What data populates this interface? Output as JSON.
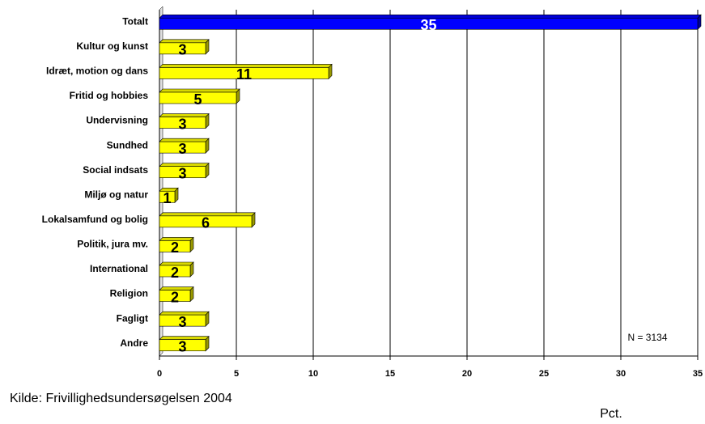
{
  "chart_data": {
    "type": "bar",
    "orientation": "horizontal",
    "categories": [
      "Totalt",
      "Kultur og kunst",
      "Idræt, motion og dans",
      "Fritid og hobbies",
      "Undervisning",
      "Sundhed",
      "Social indsats",
      "Miljø og natur",
      "Lokalsamfund og bolig",
      "Politik, jura mv.",
      "International",
      "Religion",
      "Fagligt",
      "Andre"
    ],
    "values": [
      35,
      3,
      11,
      5,
      3,
      3,
      3,
      1,
      6,
      2,
      2,
      2,
      3,
      3
    ],
    "colors": [
      "#0000ff",
      "#ffff00",
      "#ffff00",
      "#ffff00",
      "#ffff00",
      "#ffff00",
      "#ffff00",
      "#ffff00",
      "#ffff00",
      "#ffff00",
      "#ffff00",
      "#ffff00",
      "#ffff00",
      "#ffff00"
    ],
    "xlim": [
      0,
      35
    ],
    "xticks": [
      0,
      5,
      10,
      15,
      20,
      25,
      30,
      35
    ],
    "grid": true,
    "xlabel": "Pct.",
    "annotation": "N = 3134",
    "source": "Kilde: Frivillighedsundersøgelsen 2004"
  }
}
